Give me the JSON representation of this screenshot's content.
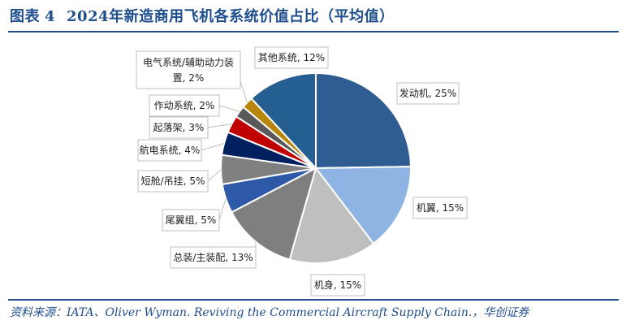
{
  "header": {
    "title_prefix": "图表",
    "title_number": "4",
    "title_text": "2024年新造商用飞机各系统价值占比（平均值）"
  },
  "footer": {
    "source": "资料来源：IATA、Oliver Wyman. Reviving the Commercial Aircraft Supply Chain.，华创证券"
  },
  "chart_data": {
    "type": "pie",
    "unit": "%",
    "slices": [
      {
        "label": "发动机, 25%",
        "name": "发动机",
        "value": 25,
        "color": "#2f5d91"
      },
      {
        "label": "机翼, 15%",
        "name": "机翼",
        "value": 15,
        "color": "#8db4e2"
      },
      {
        "label": "机身, 15%",
        "name": "机身",
        "value": 15,
        "color": "#bfbfbf"
      },
      {
        "label": "总装/主装配, 13%",
        "name": "总装/主装配",
        "value": 13,
        "color": "#7f7f7f"
      },
      {
        "label": "尾翼组, 5%",
        "name": "尾翼组",
        "value": 5,
        "color": "#2e59a8"
      },
      {
        "label": "短舱/吊挂, 5%",
        "name": "短舱/吊挂",
        "value": 5,
        "color": "#808080"
      },
      {
        "label": "航电系统, 4%",
        "name": "航电系统",
        "value": 4,
        "color": "#002060"
      },
      {
        "label": "起落架, 3%",
        "name": "起落架",
        "value": 3,
        "color": "#c00000"
      },
      {
        "label": "作动系统, 2%",
        "name": "作动系统",
        "value": 2,
        "color": "#595959"
      },
      {
        "label": "电气系统/辅助动力装置, 2%",
        "name": "电气系统/辅助动力装置",
        "value": 2,
        "color": "#b8860b"
      },
      {
        "label": "其他系统, 12%",
        "name": "其他系统",
        "value": 12,
        "color": "#255e91"
      }
    ]
  }
}
